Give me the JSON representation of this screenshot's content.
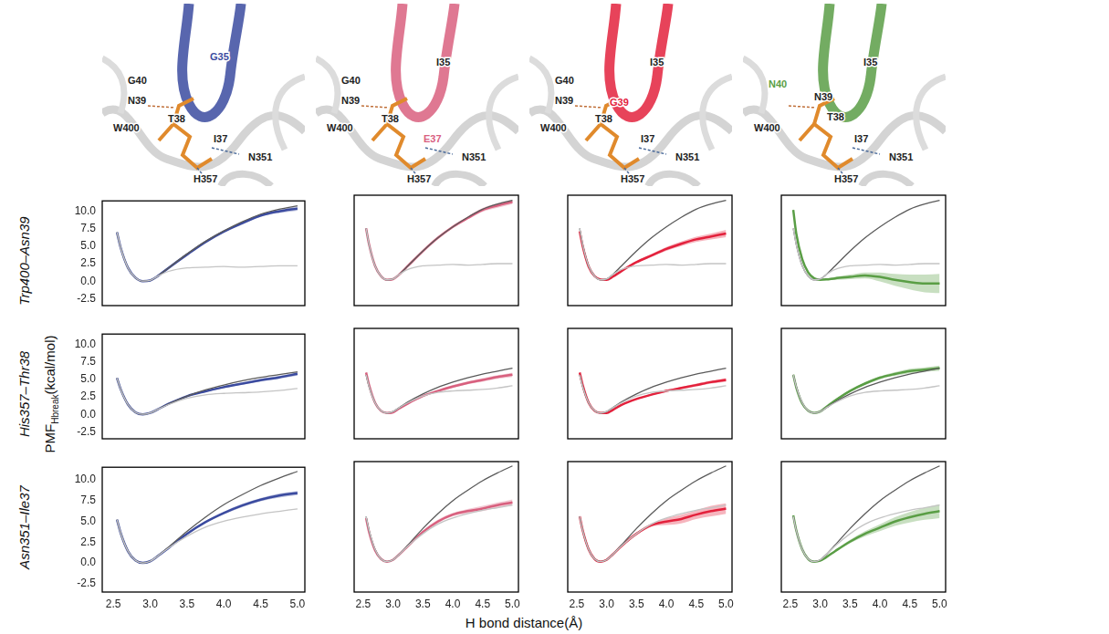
{
  "chart_data": {
    "type": "line",
    "x_title": "H bond distance(Å)",
    "y_title": {
      "main": "PMF",
      "sub": "Hbreak",
      "rest": "(kcal/mol)"
    },
    "xlim": [
      2.35,
      5.1
    ],
    "ylim": [
      -3.5,
      11.5
    ],
    "xticks": [
      2.5,
      {
        "value": 3,
        "label": "3.0"
      },
      3.5,
      {
        "value": 4,
        "label": "4.0"
      },
      4.5,
      {
        "value": 5,
        "label": "5.0"
      }
    ],
    "yticks": [
      -2.5,
      {
        "value": 0,
        "label": "0.0"
      },
      2.5,
      {
        "value": 5,
        "label": "5.0"
      },
      7.5,
      {
        "value": 10,
        "label": "10.0"
      }
    ],
    "grid": false,
    "x": [
      2.55,
      2.6,
      2.7,
      2.8,
      2.9,
      3.0,
      3.1,
      3.25,
      3.5,
      3.75,
      4.0,
      4.25,
      4.5,
      4.75,
      5.0
    ],
    "rows": [
      {
        "label": "Trp400–Asn39",
        "reference": [
          {
            "color": "#c4c4c4",
            "values": [
              7.0,
              4.8,
              1.9,
              0.5,
              0.0,
              0.1,
              0.7,
              1.4,
              1.9,
              2.0,
              2.1,
              2.0,
              2.1,
              2.2,
              2.2
            ]
          },
          {
            "color": "#5a5a5a",
            "values": [
              7.0,
              4.8,
              1.9,
              0.5,
              0.0,
              0.1,
              0.7,
              1.9,
              3.9,
              5.7,
              7.2,
              8.5,
              9.6,
              10.3,
              10.8
            ]
          }
        ],
        "panels": [
          {
            "color": "#3b4ba0",
            "values": [
              7.0,
              4.8,
              1.9,
              0.5,
              0.0,
              0.1,
              0.7,
              1.9,
              3.8,
              5.6,
              7.1,
              8.3,
              9.4,
              10.0,
              10.4
            ],
            "error": [
              0.1,
              0.1,
              0.05,
              0.05,
              0.05,
              0.05,
              0.05,
              0.05,
              0.1,
              0.1,
              0.15,
              0.2,
              0.2,
              0.25,
              0.3
            ]
          },
          {
            "color": "#d9607f",
            "values": [
              7.0,
              4.8,
              1.9,
              0.5,
              0.0,
              0.1,
              0.7,
              1.9,
              3.9,
              5.7,
              7.2,
              8.4,
              9.5,
              10.1,
              10.6
            ],
            "error": [
              0.1,
              0.1,
              0.05,
              0.05,
              0.05,
              0.05,
              0.05,
              0.05,
              0.1,
              0.1,
              0.15,
              0.2,
              0.25,
              0.3,
              0.3
            ]
          },
          {
            "color": "#e3223d",
            "values": [
              6.6,
              4.6,
              1.8,
              0.5,
              0.05,
              0.0,
              0.4,
              1.2,
              2.4,
              3.3,
              4.2,
              4.9,
              5.5,
              5.9,
              6.3
            ],
            "error": [
              0.1,
              0.1,
              0.05,
              0.05,
              0.05,
              0.05,
              0.05,
              0.1,
              0.15,
              0.2,
              0.25,
              0.3,
              0.35,
              0.4,
              0.5
            ]
          },
          {
            "color": "#5a9e46",
            "values": [
              9.5,
              6.3,
              2.8,
              1.0,
              0.2,
              0.0,
              0.05,
              0.2,
              0.4,
              0.6,
              0.4,
              0.0,
              -0.3,
              -0.5,
              -0.5
            ],
            "error": [
              0.3,
              0.2,
              0.1,
              0.1,
              0.1,
              0.1,
              0.1,
              0.2,
              0.3,
              0.4,
              0.6,
              0.8,
              1.0,
              1.2,
              1.3
            ]
          }
        ]
      },
      {
        "label": "His357–Thr38",
        "reference": [
          {
            "color": "#c4c4c4",
            "values": [
              5.2,
              3.6,
              1.4,
              0.3,
              0.0,
              0.2,
              0.7,
              1.4,
              2.3,
              2.8,
              3.0,
              3.1,
              3.2,
              3.4,
              3.7
            ]
          },
          {
            "color": "#5a5a5a",
            "values": [
              5.2,
              3.6,
              1.4,
              0.3,
              0.0,
              0.2,
              0.7,
              1.5,
              2.6,
              3.5,
              4.2,
              4.8,
              5.3,
              5.7,
              6.1
            ]
          }
        ],
        "panels": [
          {
            "color": "#3b4ba0",
            "values": [
              5.2,
              3.6,
              1.4,
              0.3,
              0.0,
              0.2,
              0.7,
              1.5,
              2.6,
              3.3,
              3.9,
              4.4,
              4.9,
              5.3,
              5.8
            ],
            "error": [
              0.1,
              0.1,
              0.05,
              0.05,
              0.05,
              0.05,
              0.05,
              0.05,
              0.1,
              0.1,
              0.15,
              0.15,
              0.2,
              0.2,
              0.25
            ]
          },
          {
            "color": "#d9607f",
            "values": [
              5.5,
              3.8,
              1.4,
              0.3,
              0.0,
              0.1,
              0.6,
              1.3,
              2.3,
              3.0,
              3.6,
              4.1,
              4.5,
              4.9,
              5.2
            ],
            "error": [
              0.1,
              0.1,
              0.05,
              0.05,
              0.05,
              0.05,
              0.05,
              0.05,
              0.1,
              0.15,
              0.2,
              0.2,
              0.25,
              0.25,
              0.3
            ]
          },
          {
            "color": "#e3223d",
            "values": [
              5.5,
              3.8,
              1.4,
              0.3,
              0.0,
              0.0,
              0.4,
              1.1,
              1.9,
              2.5,
              3.0,
              3.4,
              3.8,
              4.2,
              4.5
            ],
            "error": [
              0.1,
              0.1,
              0.05,
              0.05,
              0.05,
              0.05,
              0.05,
              0.05,
              0.1,
              0.1,
              0.15,
              0.15,
              0.2,
              0.2,
              0.25
            ]
          },
          {
            "color": "#5a9e46",
            "values": [
              5.2,
              3.5,
              1.3,
              0.3,
              0.0,
              0.2,
              0.8,
              1.7,
              3.0,
              4.0,
              4.8,
              5.3,
              5.7,
              5.9,
              6.1
            ],
            "error": [
              0.1,
              0.1,
              0.05,
              0.05,
              0.05,
              0.05,
              0.05,
              0.1,
              0.15,
              0.2,
              0.2,
              0.25,
              0.3,
              0.3,
              0.35
            ]
          }
        ]
      },
      {
        "label": "Asn351–Ile37",
        "reference": [
          {
            "color": "#c4c4c4",
            "values": [
              5.2,
              3.6,
              1.4,
              0.3,
              0.0,
              0.2,
              0.8,
              1.8,
              3.2,
              4.3,
              5.0,
              5.5,
              5.9,
              6.2,
              6.5
            ]
          },
          {
            "color": "#5a5a5a",
            "values": [
              5.2,
              3.6,
              1.4,
              0.3,
              0.0,
              0.2,
              0.8,
              1.9,
              3.8,
              5.5,
              7.0,
              8.2,
              9.3,
              10.2,
              11.0
            ]
          }
        ],
        "panels": [
          {
            "color": "#3b4ba0",
            "values": [
              5.2,
              3.6,
              1.4,
              0.3,
              0.0,
              0.2,
              0.8,
              1.8,
              3.5,
              4.9,
              6.0,
              6.9,
              7.6,
              8.1,
              8.4
            ],
            "error": [
              0.1,
              0.1,
              0.05,
              0.05,
              0.05,
              0.05,
              0.05,
              0.05,
              0.1,
              0.1,
              0.15,
              0.2,
              0.2,
              0.25,
              0.25
            ]
          },
          {
            "color": "#d9607f",
            "values": [
              5.0,
              3.4,
              1.3,
              0.3,
              0.0,
              0.2,
              0.8,
              1.8,
              3.4,
              4.6,
              5.4,
              5.8,
              6.1,
              6.5,
              6.8
            ],
            "error": [
              0.1,
              0.1,
              0.05,
              0.05,
              0.05,
              0.05,
              0.05,
              0.05,
              0.15,
              0.2,
              0.2,
              0.25,
              0.3,
              0.3,
              0.35
            ]
          },
          {
            "color": "#e3223d",
            "values": [
              5.2,
              3.6,
              1.4,
              0.3,
              0.0,
              0.2,
              0.8,
              1.8,
              3.2,
              4.2,
              4.6,
              4.9,
              5.4,
              5.8,
              6.1
            ],
            "error": [
              0.1,
              0.1,
              0.05,
              0.05,
              0.05,
              0.05,
              0.05,
              0.1,
              0.15,
              0.2,
              0.4,
              0.5,
              0.5,
              0.6,
              0.6
            ]
          },
          {
            "color": "#5a9e46",
            "values": [
              5.3,
              3.6,
              1.4,
              0.3,
              0.0,
              0.1,
              0.5,
              1.2,
              2.3,
              3.2,
              3.9,
              4.6,
              5.1,
              5.5,
              5.8
            ],
            "error": [
              0.1,
              0.1,
              0.05,
              0.05,
              0.05,
              0.05,
              0.05,
              0.1,
              0.2,
              0.3,
              0.4,
              0.5,
              0.6,
              0.7,
              0.8
            ]
          }
        ]
      }
    ]
  },
  "structures": [
    {
      "color": "#3b4ba0",
      "labels": [
        {
          "text": "G40"
        },
        {
          "text": "G35",
          "color": "#3b4ba0"
        },
        {
          "text": "N39"
        },
        {
          "text": "T38"
        },
        {
          "text": "W400"
        },
        {
          "text": "I37"
        },
        {
          "text": "N351"
        },
        {
          "text": "H357"
        }
      ]
    },
    {
      "color": "#d9607f",
      "labels": [
        {
          "text": "G40"
        },
        {
          "text": "I35"
        },
        {
          "text": "N39"
        },
        {
          "text": "T38"
        },
        {
          "text": "W400"
        },
        {
          "text": "E37",
          "color": "#d9607f"
        },
        {
          "text": "N351"
        },
        {
          "text": "H357"
        }
      ]
    },
    {
      "color": "#e3223d",
      "labels": [
        {
          "text": "G40"
        },
        {
          "text": "I35"
        },
        {
          "text": "N39"
        },
        {
          "text": "G39",
          "color": "#e3223d"
        },
        {
          "text": "T38"
        },
        {
          "text": "W400"
        },
        {
          "text": "I37"
        },
        {
          "text": "N351"
        },
        {
          "text": "H357"
        }
      ]
    },
    {
      "color": "#5a9e46",
      "labels": [
        {
          "text": "I35"
        },
        {
          "text": "N40",
          "color": "#5a9e46"
        },
        {
          "text": "N39"
        },
        {
          "text": "T38"
        },
        {
          "text": "W400"
        },
        {
          "text": "I37"
        },
        {
          "text": "N351"
        },
        {
          "text": "H357"
        }
      ]
    }
  ]
}
